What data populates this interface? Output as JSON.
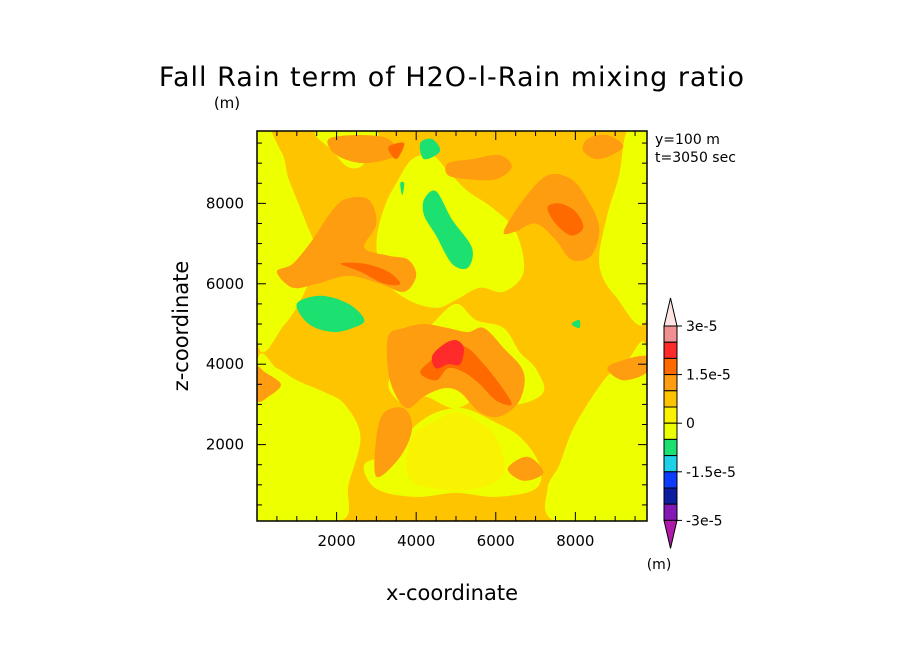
{
  "chart_data": {
    "type": "contour",
    "title": "Fall Rain term of H2O-l-Rain mixing ratio",
    "title_units": "(m)",
    "xlabel": "x-coordinate",
    "ylabel": "z-coordinate",
    "xlim": [
      0,
      9800
    ],
    "ylim": [
      100,
      9800
    ],
    "xticks": [
      2000,
      4000,
      6000,
      8000
    ],
    "yticks": [
      2000,
      4000,
      6000,
      8000
    ],
    "xtick_labels": [
      "2000",
      "4000",
      "6000",
      "8000"
    ],
    "ytick_labels": [
      "2000",
      "4000",
      "6000",
      "8000"
    ],
    "annotations": [
      "y=100 m",
      "t=3050 sec"
    ],
    "colorbar": {
      "labels": [
        "3e-5",
        "1.5e-5",
        "0",
        "-1.5e-5",
        "-3e-5"
      ],
      "label_values": [
        3e-05,
        1.5e-05,
        0,
        -1.5e-05,
        -3e-05
      ],
      "units": "(m)",
      "levels_top_to_bottom": [
        3e-05,
        2.5e-05,
        2e-05,
        1.5e-05,
        1e-05,
        5e-06,
        0,
        -5e-06,
        -1e-05,
        -1.5e-05,
        -2e-05,
        -2.5e-05,
        -3e-05
      ],
      "colors_top_to_bottom": [
        "#ffe4e4",
        "#f09090",
        "#ff2a2a",
        "#ff6a00",
        "#ff9d10",
        "#ffc400",
        "#f9f200",
        "#ebff00",
        "#1ce070",
        "#1ed0e8",
        "#0d3bff",
        "#0d1d9f",
        "#8418b4",
        "#b01aa8"
      ]
    },
    "colors": {
      "background": "#ffc400",
      "light_orange": "#ffc400",
      "yellow": "#eeff00",
      "orange": "#ff9d10",
      "dark_orange": "#ff6a00",
      "red": "#ff2a2a",
      "green": "#1ce070",
      "pale_yellow": "#f9f200"
    },
    "regions": {
      "yellow": [
        [
          [
            0,
            100
          ],
          [
            2100,
            100
          ],
          [
            2300,
            1000
          ],
          [
            2600,
            2200
          ],
          [
            2200,
            3000
          ],
          [
            1700,
            3300
          ],
          [
            1000,
            3600
          ],
          [
            500,
            3900
          ],
          [
            0,
            4000
          ]
        ],
        [
          [
            0,
            4600
          ],
          [
            700,
            5000
          ],
          [
            1200,
            5800
          ],
          [
            1500,
            6700
          ],
          [
            1200,
            7600
          ],
          [
            800,
            8600
          ],
          [
            600,
            9300
          ],
          [
            0,
            9800
          ]
        ],
        [
          [
            1500,
            9800
          ],
          [
            1900,
            9300
          ],
          [
            2300,
            8900
          ],
          [
            2700,
            9000
          ],
          [
            3000,
            9800
          ]
        ],
        [
          [
            9800,
            100
          ],
          [
            7500,
            100
          ],
          [
            7300,
            900
          ],
          [
            7600,
            1500
          ],
          [
            7900,
            2300
          ],
          [
            8300,
            3000
          ],
          [
            8800,
            3700
          ],
          [
            9300,
            4100
          ],
          [
            9800,
            4300
          ]
        ],
        [
          [
            9800,
            5200
          ],
          [
            9000,
            5700
          ],
          [
            8600,
            6500
          ],
          [
            8800,
            7700
          ],
          [
            9100,
            8700
          ],
          [
            9300,
            9800
          ],
          [
            9800,
            9800
          ]
        ],
        [
          [
            3200,
            6100
          ],
          [
            3800,
            5600
          ],
          [
            4500,
            5400
          ],
          [
            5000,
            5600
          ],
          [
            5600,
            5900
          ],
          [
            6200,
            5800
          ],
          [
            6700,
            6300
          ],
          [
            6500,
            7300
          ],
          [
            5900,
            7900
          ],
          [
            5300,
            8300
          ],
          [
            4800,
            8800
          ],
          [
            4400,
            9200
          ],
          [
            3900,
            9100
          ],
          [
            3500,
            8500
          ],
          [
            3200,
            7900
          ],
          [
            3000,
            7000
          ]
        ],
        [
          [
            3700,
            3000
          ],
          [
            4200,
            3200
          ],
          [
            5000,
            2900
          ],
          [
            5800,
            3300
          ],
          [
            6500,
            3000
          ],
          [
            7200,
            3300
          ],
          [
            7000,
            3900
          ],
          [
            6600,
            4300
          ],
          [
            6200,
            4900
          ],
          [
            5500,
            5100
          ],
          [
            5000,
            5500
          ],
          [
            4400,
            5000
          ],
          [
            3700,
            4300
          ],
          [
            3300,
            3500
          ]
        ],
        [
          [
            2700,
            1500
          ],
          [
            3400,
            1800
          ],
          [
            3900,
            2400
          ],
          [
            4500,
            2800
          ],
          [
            5200,
            2900
          ],
          [
            5900,
            2600
          ],
          [
            6600,
            2200
          ],
          [
            7100,
            1500
          ],
          [
            7000,
            900
          ],
          [
            6000,
            700
          ],
          [
            5000,
            800
          ],
          [
            4000,
            700
          ],
          [
            3000,
            900
          ]
        ]
      ],
      "orange": [
        [
          [
            500,
            6300
          ],
          [
            900,
            6500
          ],
          [
            1400,
            7100
          ],
          [
            1800,
            7700
          ],
          [
            2200,
            8100
          ],
          [
            2800,
            8100
          ],
          [
            3000,
            7500
          ],
          [
            2700,
            6900
          ],
          [
            3300,
            6700
          ],
          [
            3800,
            6600
          ],
          [
            4000,
            6200
          ],
          [
            3700,
            5800
          ],
          [
            3100,
            6000
          ],
          [
            2300,
            6200
          ],
          [
            1500,
            6000
          ],
          [
            900,
            5900
          ]
        ],
        [
          [
            3300,
            4700
          ],
          [
            3700,
            4900
          ],
          [
            4200,
            5000
          ],
          [
            4800,
            4900
          ],
          [
            5300,
            4800
          ],
          [
            5700,
            4900
          ],
          [
            6200,
            4400
          ],
          [
            6700,
            3800
          ],
          [
            6600,
            3100
          ],
          [
            6100,
            2700
          ],
          [
            5600,
            2800
          ],
          [
            5100,
            3300
          ],
          [
            4700,
            3400
          ],
          [
            4200,
            3200
          ],
          [
            3800,
            2900
          ],
          [
            3500,
            3200
          ],
          [
            3300,
            3800
          ]
        ],
        [
          [
            6200,
            7300
          ],
          [
            6700,
            8100
          ],
          [
            7300,
            8700
          ],
          [
            7900,
            8600
          ],
          [
            8300,
            8100
          ],
          [
            8600,
            7400
          ],
          [
            8400,
            6700
          ],
          [
            7900,
            6600
          ],
          [
            7500,
            7100
          ],
          [
            7000,
            7500
          ],
          [
            6500,
            7300
          ]
        ],
        [
          [
            4800,
            9000
          ],
          [
            5400,
            9100
          ],
          [
            6100,
            9200
          ],
          [
            6400,
            8900
          ],
          [
            6000,
            8600
          ],
          [
            5300,
            8600
          ],
          [
            4800,
            8700
          ]
        ],
        [
          [
            1800,
            9600
          ],
          [
            2600,
            9700
          ],
          [
            3300,
            9600
          ],
          [
            3500,
            9200
          ],
          [
            2700,
            9000
          ],
          [
            2000,
            9200
          ]
        ],
        [
          [
            8300,
            9600
          ],
          [
            8800,
            9700
          ],
          [
            9200,
            9400
          ],
          [
            8600,
            9100
          ],
          [
            8200,
            9300
          ]
        ],
        [
          [
            3000,
            1200
          ],
          [
            3600,
            1700
          ],
          [
            3900,
            2400
          ],
          [
            3700,
            2900
          ],
          [
            3200,
            2800
          ],
          [
            3000,
            2200
          ]
        ],
        [
          [
            0,
            3100
          ],
          [
            300,
            3200
          ],
          [
            600,
            3500
          ],
          [
            200,
            3800
          ],
          [
            0,
            3900
          ]
        ],
        [
          [
            9200,
            3600
          ],
          [
            9800,
            3800
          ],
          [
            9800,
            4200
          ],
          [
            9200,
            4100
          ],
          [
            8800,
            3900
          ]
        ],
        [
          [
            6300,
            1400
          ],
          [
            6800,
            1700
          ],
          [
            7200,
            1300
          ],
          [
            6700,
            1100
          ]
        ]
      ],
      "dark_orange": [
        [
          [
            4100,
            3800
          ],
          [
            4500,
            4200
          ],
          [
            4900,
            4500
          ],
          [
            5300,
            4400
          ],
          [
            5700,
            4000
          ],
          [
            6100,
            3500
          ],
          [
            6400,
            3000
          ],
          [
            6000,
            3100
          ],
          [
            5600,
            3500
          ],
          [
            5200,
            3800
          ],
          [
            4800,
            3900
          ],
          [
            4500,
            3600
          ]
        ],
        [
          [
            2100,
            6500
          ],
          [
            2700,
            6500
          ],
          [
            3300,
            6300
          ],
          [
            3600,
            6000
          ],
          [
            3200,
            6000
          ],
          [
            2600,
            6300
          ]
        ],
        [
          [
            7300,
            7900
          ],
          [
            7600,
            8000
          ],
          [
            8000,
            7800
          ],
          [
            8200,
            7400
          ],
          [
            7900,
            7200
          ],
          [
            7500,
            7500
          ]
        ],
        [
          [
            3300,
            9400
          ],
          [
            3700,
            9500
          ],
          [
            3500,
            9100
          ]
        ]
      ],
      "red": [
        [
          [
            4400,
            4200
          ],
          [
            4700,
            4500
          ],
          [
            5000,
            4600
          ],
          [
            5200,
            4400
          ],
          [
            5100,
            4000
          ],
          [
            4800,
            4000
          ],
          [
            4500,
            3900
          ]
        ]
      ],
      "green": [
        [
          [
            1000,
            5500
          ],
          [
            1300,
            5000
          ],
          [
            1900,
            4800
          ],
          [
            2400,
            4900
          ],
          [
            2700,
            5100
          ],
          [
            2300,
            5500
          ],
          [
            1600,
            5700
          ]
        ],
        [
          [
            4200,
            8100
          ],
          [
            4500,
            8300
          ],
          [
            4900,
            7600
          ],
          [
            5400,
            6900
          ],
          [
            5300,
            6400
          ],
          [
            4900,
            6500
          ],
          [
            4500,
            7200
          ],
          [
            4200,
            7700
          ]
        ],
        [
          [
            4100,
            9500
          ],
          [
            4400,
            9600
          ],
          [
            4600,
            9300
          ],
          [
            4200,
            9100
          ]
        ],
        [
          [
            7900,
            5000
          ],
          [
            8100,
            5100
          ],
          [
            8100,
            4900
          ]
        ],
        [
          [
            3600,
            8500
          ],
          [
            3700,
            8500
          ],
          [
            3650,
            8200
          ]
        ]
      ],
      "pale_yellow": [
        [
          [
            3900,
            2200
          ],
          [
            4500,
            2600
          ],
          [
            5000,
            2800
          ],
          [
            5500,
            2600
          ],
          [
            6000,
            2200
          ],
          [
            6200,
            1300
          ],
          [
            5500,
            900
          ],
          [
            4500,
            900
          ],
          [
            3800,
            1200
          ]
        ]
      ]
    }
  }
}
